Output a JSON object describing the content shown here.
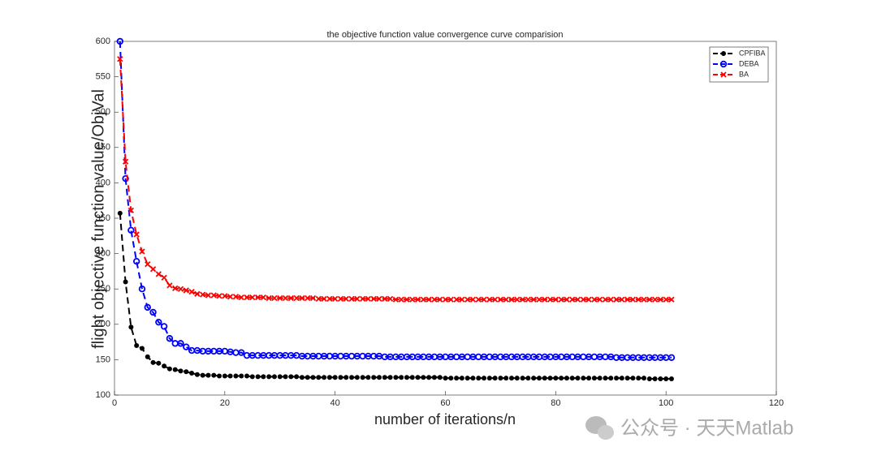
{
  "chart_data": {
    "type": "line",
    "title": "the objective function value convergence curve comparision",
    "x_label": "number of iterations/n",
    "y_label": "flight objective function value/ObjVal",
    "xlim": [
      0,
      120
    ],
    "xticks": [
      0,
      20,
      40,
      60,
      80,
      100,
      120
    ],
    "ylim": [
      100,
      600
    ],
    "yticks": [
      100,
      150,
      200,
      250,
      300,
      350,
      400,
      450,
      500,
      550,
      600
    ],
    "legend": "top-right",
    "x": [
      1,
      2,
      3,
      4,
      5,
      6,
      7,
      8,
      9,
      10,
      11,
      12,
      13,
      14,
      15,
      16,
      17,
      18,
      19,
      20,
      21,
      22,
      23,
      24,
      25,
      26,
      27,
      28,
      29,
      30,
      31,
      32,
      33,
      34,
      35,
      36,
      37,
      38,
      39,
      40,
      41,
      42,
      43,
      44,
      45,
      46,
      47,
      48,
      49,
      50,
      51,
      52,
      53,
      54,
      55,
      56,
      57,
      58,
      59,
      60,
      61,
      62,
      63,
      64,
      65,
      66,
      67,
      68,
      69,
      70,
      71,
      72,
      73,
      74,
      75,
      76,
      77,
      78,
      79,
      80,
      81,
      82,
      83,
      84,
      85,
      86,
      87,
      88,
      89,
      90,
      91,
      92,
      93,
      94,
      95,
      96,
      97,
      98,
      99,
      100,
      101
    ],
    "series": [
      {
        "name": "CPFIBA",
        "color": "#000000",
        "marker": "dot",
        "values": [
          357,
          260,
          196,
          170,
          166,
          154,
          146,
          145,
          141,
          137,
          136,
          134,
          133,
          131,
          129,
          128,
          128,
          128,
          127,
          127,
          127,
          127,
          127,
          127,
          126,
          126,
          126,
          126,
          126,
          126,
          126,
          126,
          126,
          125,
          125,
          125,
          125,
          125,
          125,
          125,
          125,
          125,
          125,
          125,
          125,
          125,
          125,
          125,
          125,
          125,
          125,
          125,
          125,
          125,
          125,
          125,
          125,
          125,
          125,
          124,
          124,
          124,
          124,
          124,
          124,
          124,
          124,
          124,
          124,
          124,
          124,
          124,
          124,
          124,
          124,
          124,
          124,
          124,
          124,
          124,
          124,
          124,
          124,
          124,
          124,
          124,
          124,
          124,
          124,
          124,
          124,
          124,
          124,
          124,
          124,
          124,
          123,
          123,
          123,
          123,
          123
        ]
      },
      {
        "name": "DEBA",
        "color": "#0000ff",
        "marker": "circle",
        "values": [
          600,
          406,
          333,
          289,
          250,
          224,
          217,
          203,
          197,
          180,
          173,
          173,
          168,
          163,
          163,
          162,
          162,
          162,
          162,
          162,
          161,
          160,
          160,
          156,
          156,
          156,
          156,
          156,
          156,
          156,
          156,
          156,
          156,
          155,
          155,
          155,
          155,
          155,
          155,
          155,
          155,
          155,
          155,
          155,
          155,
          155,
          155,
          155,
          154,
          154,
          154,
          154,
          154,
          154,
          154,
          154,
          154,
          154,
          154,
          154,
          154,
          154,
          154,
          154,
          154,
          154,
          154,
          154,
          154,
          154,
          154,
          154,
          154,
          154,
          154,
          154,
          154,
          154,
          154,
          154,
          154,
          154,
          154,
          154,
          154,
          154,
          154,
          154,
          154,
          154,
          153,
          153,
          153,
          153,
          153,
          153,
          153,
          153,
          153,
          153,
          153
        ]
      },
      {
        "name": "BA",
        "color": "#ff0000",
        "marker": "x",
        "values": [
          575,
          430,
          361,
          327,
          303,
          285,
          278,
          271,
          266,
          255,
          251,
          250,
          248,
          246,
          243,
          242,
          241,
          241,
          240,
          240,
          239,
          239,
          238,
          238,
          238,
          238,
          238,
          237,
          237,
          237,
          237,
          237,
          237,
          237,
          237,
          237,
          236,
          236,
          236,
          236,
          236,
          236,
          236,
          236,
          236,
          236,
          236,
          236,
          236,
          236,
          235,
          235,
          235,
          235,
          235,
          235,
          235,
          235,
          235,
          235,
          235,
          235,
          235,
          235,
          235,
          235,
          235,
          235,
          235,
          235,
          235,
          235,
          235,
          235,
          235,
          235,
          235,
          235,
          235,
          235,
          235,
          235,
          235,
          235,
          235,
          235,
          235,
          235,
          235,
          235,
          235,
          235,
          235,
          235,
          235,
          235,
          235,
          235,
          235,
          235,
          235
        ]
      }
    ],
    "watermark": "公众号 · 天天Matlab"
  }
}
